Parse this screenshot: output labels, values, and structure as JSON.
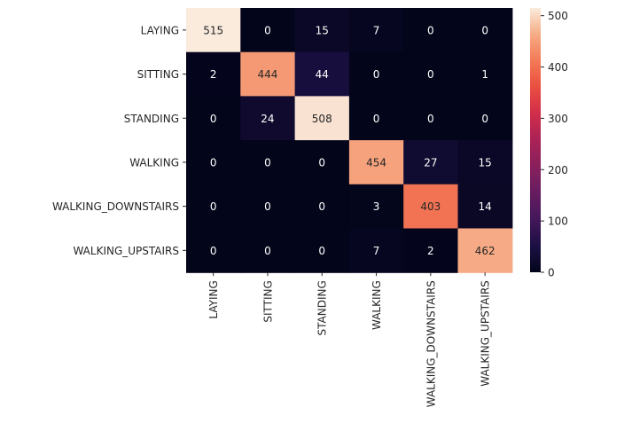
{
  "chart_data": {
    "type": "heatmap",
    "title": "",
    "xlabel": "",
    "ylabel": "",
    "row_labels": [
      "LAYING",
      "SITTING",
      "STANDING",
      "WALKING",
      "WALKING_DOWNSTAIRS",
      "WALKING_UPSTAIRS"
    ],
    "col_labels": [
      "LAYING",
      "SITTING",
      "STANDING",
      "WALKING",
      "WALKING_DOWNSTAIRS",
      "WALKING_UPSTAIRS"
    ],
    "values": [
      [
        515,
        0,
        15,
        7,
        0,
        0
      ],
      [
        2,
        444,
        44,
        0,
        0,
        1
      ],
      [
        0,
        24,
        508,
        0,
        0,
        0
      ],
      [
        0,
        0,
        0,
        454,
        27,
        15
      ],
      [
        0,
        0,
        0,
        3,
        403,
        14
      ],
      [
        0,
        0,
        0,
        7,
        2,
        462
      ]
    ],
    "colorbar": {
      "range": [
        0,
        515
      ],
      "ticks": [
        "0",
        "100",
        "200",
        "300",
        "400",
        "500"
      ],
      "colormap": "rocket"
    },
    "annotations": true
  }
}
